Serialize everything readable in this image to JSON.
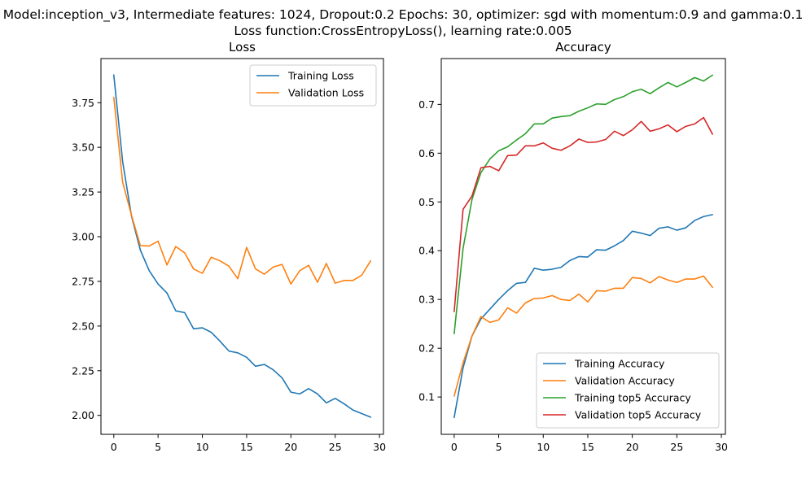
{
  "figure": {
    "suptitle_line1": "Model:inception_v3, Intermediate features: 1024, Dropout:0.2 Epochs: 30, optimizer: sgd with momentum:0.9 and gamma:0.1",
    "suptitle_line2": "Loss function:CrossEntropyLoss(), learning rate:0.005"
  },
  "chart_data": [
    {
      "type": "line",
      "title": "Loss",
      "xlabel": "",
      "ylabel": "",
      "xlim": [
        -1.45,
        30.45
      ],
      "ylim": [
        1.894,
        3.997
      ],
      "xticks": [
        0,
        5,
        10,
        15,
        20,
        25,
        30
      ],
      "yticks": [
        2.0,
        2.25,
        2.5,
        2.75,
        3.0,
        3.25,
        3.5,
        3.75
      ],
      "ytick_labels": [
        "2.00",
        "2.25",
        "2.50",
        "2.75",
        "3.00",
        "3.25",
        "3.50",
        "3.75"
      ],
      "legend_position": "upper right",
      "x": [
        0,
        1,
        2,
        3,
        4,
        5,
        6,
        7,
        8,
        9,
        10,
        11,
        12,
        13,
        14,
        15,
        16,
        17,
        18,
        19,
        20,
        21,
        22,
        23,
        24,
        25,
        26,
        27,
        28,
        29
      ],
      "series": [
        {
          "name": "Training Loss",
          "color": "#1f77b4",
          "values": [
            3.905,
            3.42,
            3.115,
            2.925,
            2.81,
            2.735,
            2.685,
            2.585,
            2.575,
            2.485,
            2.49,
            2.465,
            2.415,
            2.36,
            2.35,
            2.325,
            2.275,
            2.285,
            2.255,
            2.21,
            2.13,
            2.12,
            2.15,
            2.12,
            2.07,
            2.095,
            2.065,
            2.03,
            2.01,
            1.99
          ]
        },
        {
          "name": "Validation Loss",
          "color": "#ff7f0e",
          "values": [
            3.78,
            3.305,
            3.12,
            2.95,
            2.948,
            2.975,
            2.842,
            2.945,
            2.91,
            2.82,
            2.795,
            2.885,
            2.865,
            2.835,
            2.765,
            2.94,
            2.82,
            2.79,
            2.83,
            2.845,
            2.735,
            2.81,
            2.84,
            2.745,
            2.85,
            2.74,
            2.755,
            2.755,
            2.785,
            2.865
          ]
        }
      ]
    },
    {
      "type": "line",
      "title": "Accuracy",
      "xlabel": "",
      "ylabel": "",
      "xlim": [
        -1.45,
        30.45
      ],
      "ylim": [
        0.0235,
        0.794
      ],
      "xticks": [
        0,
        5,
        10,
        15,
        20,
        25,
        30
      ],
      "yticks": [
        0.1,
        0.2,
        0.3,
        0.4,
        0.5,
        0.6,
        0.7
      ],
      "ytick_labels": [
        "0.1",
        "0.2",
        "0.3",
        "0.4",
        "0.5",
        "0.6",
        "0.7"
      ],
      "legend_position": "lower right",
      "x": [
        0,
        1,
        2,
        3,
        4,
        5,
        6,
        7,
        8,
        9,
        10,
        11,
        12,
        13,
        14,
        15,
        16,
        17,
        18,
        19,
        20,
        21,
        22,
        23,
        24,
        25,
        26,
        27,
        28,
        29
      ],
      "series": [
        {
          "name": "Training Accuracy",
          "color": "#1f77b4",
          "values": [
            0.058,
            0.16,
            0.225,
            0.26,
            0.28,
            0.3,
            0.318,
            0.333,
            0.335,
            0.364,
            0.36,
            0.362,
            0.366,
            0.38,
            0.388,
            0.387,
            0.402,
            0.401,
            0.41,
            0.421,
            0.44,
            0.436,
            0.431,
            0.446,
            0.449,
            0.442,
            0.447,
            0.462,
            0.47,
            0.474
          ]
        },
        {
          "name": "Validation Accuracy",
          "color": "#ff7f0e",
          "values": [
            0.102,
            0.17,
            0.225,
            0.265,
            0.253,
            0.258,
            0.283,
            0.272,
            0.293,
            0.302,
            0.303,
            0.308,
            0.3,
            0.298,
            0.311,
            0.295,
            0.318,
            0.317,
            0.323,
            0.323,
            0.345,
            0.343,
            0.334,
            0.347,
            0.34,
            0.335,
            0.342,
            0.342,
            0.348,
            0.325
          ]
        },
        {
          "name": "Training top5 Accuracy",
          "color": "#2ca02c",
          "values": [
            0.23,
            0.405,
            0.505,
            0.56,
            0.588,
            0.605,
            0.613,
            0.627,
            0.64,
            0.66,
            0.66,
            0.672,
            0.675,
            0.677,
            0.686,
            0.693,
            0.701,
            0.7,
            0.71,
            0.716,
            0.726,
            0.731,
            0.722,
            0.734,
            0.745,
            0.736,
            0.745,
            0.755,
            0.748,
            0.76
          ]
        },
        {
          "name": "Validation top5 Accuracy",
          "color": "#d62728",
          "values": [
            0.275,
            0.485,
            0.512,
            0.57,
            0.573,
            0.564,
            0.595,
            0.596,
            0.615,
            0.615,
            0.621,
            0.61,
            0.606,
            0.615,
            0.629,
            0.622,
            0.623,
            0.628,
            0.645,
            0.636,
            0.648,
            0.665,
            0.645,
            0.65,
            0.658,
            0.644,
            0.655,
            0.66,
            0.673,
            0.639
          ]
        }
      ]
    }
  ]
}
